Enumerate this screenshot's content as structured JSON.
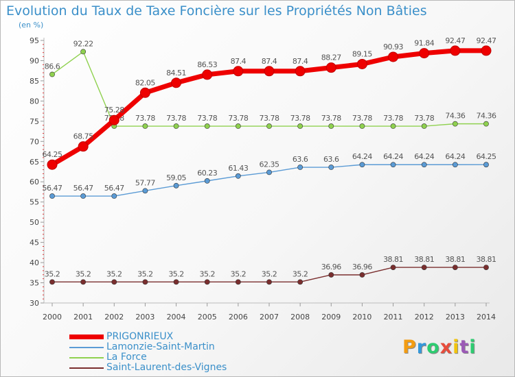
{
  "chart_data": {
    "type": "line",
    "title": "Evolution du Taux de Taxe Foncière sur les Propriétés Non Bâties",
    "ylabel": "(en %)",
    "xlabel": "",
    "x": [
      "2000",
      "2001",
      "2002",
      "2003",
      "2004",
      "2005",
      "2006",
      "2007",
      "2008",
      "2009",
      "2010",
      "2011",
      "2012",
      "2013",
      "2014"
    ],
    "yticks": [
      "30",
      "35",
      "40",
      "45",
      "50",
      "55",
      "60",
      "65",
      "70",
      "75",
      "80",
      "85",
      "90",
      "95"
    ],
    "ylim": [
      30,
      95
    ],
    "grid": false,
    "legend_position": "bottom-left",
    "series": [
      {
        "name": "PRIGONRIEUX",
        "color": "#ee0000",
        "values": [
          64.25,
          68.75,
          75.28,
          82.05,
          84.51,
          86.53,
          87.4,
          87.4,
          87.4,
          88.27,
          89.15,
          90.93,
          91.84,
          92.47,
          92.47
        ],
        "labels": [
          "64.25",
          "68.75",
          "75.28",
          "82.05",
          "84.51",
          "86.53",
          "87.4",
          "87.4",
          "87.4",
          "88.27",
          "89.15",
          "90.93",
          "91.84",
          "92.47",
          "92.47"
        ]
      },
      {
        "name": "Lamonzie-Saint-Martin",
        "color": "#5b9bd5",
        "values": [
          56.47,
          56.47,
          56.47,
          57.77,
          59.05,
          60.23,
          61.43,
          62.35,
          63.6,
          63.6,
          64.24,
          64.24,
          64.24,
          64.24,
          64.25
        ],
        "labels": [
          "56.47",
          "56.47",
          "56.47",
          "57.77",
          "59.05",
          "60.23",
          "61.43",
          "62.35",
          "63.6",
          "63.6",
          "64.24",
          "64.24",
          "64.24",
          "64.24",
          "64.25"
        ]
      },
      {
        "name": "La Force",
        "color": "#8fd14f",
        "values": [
          86.6,
          92.22,
          73.78,
          73.78,
          73.78,
          73.78,
          73.78,
          73.78,
          73.78,
          73.78,
          73.78,
          73.78,
          73.78,
          74.36,
          74.36
        ],
        "labels": [
          "86.6",
          "92.22",
          "73.78",
          "73.78",
          "73.78",
          "73.78",
          "73.78",
          "73.78",
          "73.78",
          "73.78",
          "73.78",
          "73.78",
          "73.78",
          "74.36",
          "74.36"
        ]
      },
      {
        "name": "Saint-Laurent-des-Vignes",
        "color": "#7a2e2e",
        "values": [
          35.2,
          35.2,
          35.2,
          35.2,
          35.2,
          35.2,
          35.2,
          35.2,
          35.2,
          36.96,
          36.96,
          38.81,
          38.81,
          38.81,
          38.81
        ],
        "labels": [
          "35.2",
          "35.2",
          "35.2",
          "35.2",
          "35.2",
          "35.2",
          "35.2",
          "35.2",
          "35.2",
          "36.96",
          "36.96",
          "38.81",
          "38.81",
          "38.81",
          "38.81"
        ]
      }
    ]
  },
  "brand": {
    "letters": [
      "P",
      "r",
      "o",
      "x",
      "i",
      "t",
      "i"
    ],
    "colors": [
      "#f39c12",
      "#3498db",
      "#2ecc71",
      "#e74c3c",
      "#f1c40f",
      "#9b59b6",
      "#2ecc71"
    ]
  }
}
